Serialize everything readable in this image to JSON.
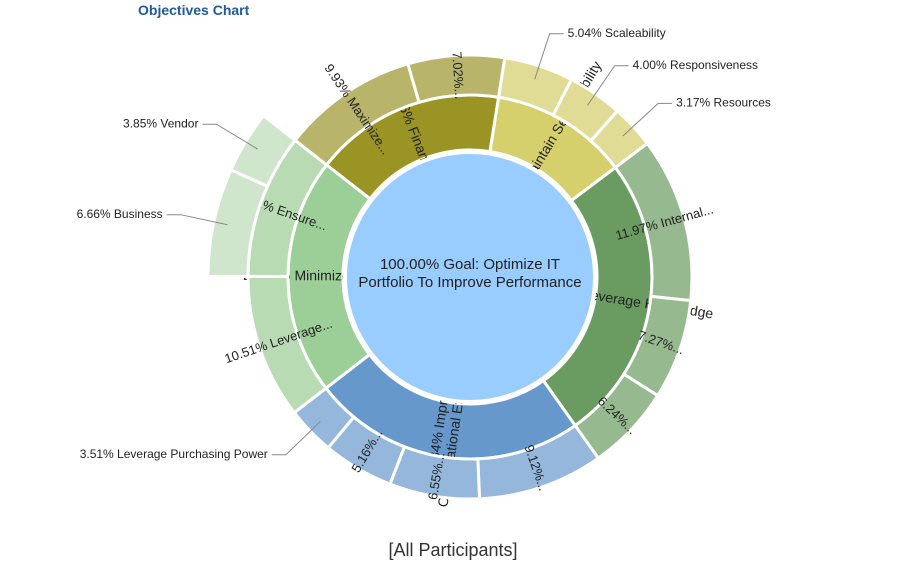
{
  "title": "Objectives Chart",
  "footer": "[All Participants]",
  "chart_data": {
    "type": "sunburst",
    "root": {
      "label": "100.00% Goal: Optimize IT Portfolio To Improve Performance",
      "value": 100.0,
      "color": "#99ccff"
    },
    "children": [
      {
        "label": "16.96% Financials",
        "value": 16.96,
        "color": "#9a9424",
        "children": [
          {
            "label": "9.93% Maximize...",
            "value": 9.93,
            "color": "#b8b46a"
          },
          {
            "label": "7.02%...",
            "value": 7.02,
            "color": "#b8b46a"
          }
        ]
      },
      {
        "label": "12.21% Maintain Serviceability",
        "value": 12.21,
        "color": "#d5d06c",
        "children": [
          {
            "label": "5.04% Scaleability",
            "value": 5.04,
            "color": "#e0dc95"
          },
          {
            "label": "4.00% Responsiveness",
            "value": 4.0,
            "color": "#e0dc95"
          },
          {
            "label": "3.17% Resources",
            "value": 3.17,
            "color": "#e0dc95"
          }
        ]
      },
      {
        "label": "25.47% Leverage Knowledge",
        "value": 25.47,
        "color": "#6a9c62",
        "children": [
          {
            "label": "11.97% Internal...",
            "value": 11.97,
            "color": "#96b98f"
          },
          {
            "label": "7.27%...",
            "value": 7.27,
            "color": "#96b98f"
          },
          {
            "label": "6.24%...",
            "value": 6.24,
            "color": "#96b98f"
          }
        ]
      },
      {
        "label": "24.34% Improve Organizational Efficiency",
        "value": 24.34,
        "color": "#6798cc",
        "children": [
          {
            "label": "9.12%...",
            "value": 9.12,
            "color": "#95b7dc"
          },
          {
            "label": "6.55%...",
            "value": 6.55,
            "color": "#95b7dc"
          },
          {
            "label": "5.16%...",
            "value": 5.16,
            "color": "#95b7dc"
          },
          {
            "label": "3.51% Leverage Purchasing Power",
            "value": 3.51,
            "color": "#95b7dc"
          }
        ]
      },
      {
        "label": "21.02% Minimize Risks",
        "value": 21.02,
        "color": "#9cce98",
        "children": [
          {
            "label": "10.51% Leverage...",
            "value": 10.51,
            "color": "#b8dbb3"
          },
          {
            "label": "10.51% Ensure...",
            "value": 10.51,
            "color": "#b8dbb3",
            "children": [
              {
                "label": "6.66% Business",
                "value": 6.66,
                "color": "#cfe6cc"
              },
              {
                "label": "3.85% Vendor",
                "value": 3.85,
                "color": "#cfe6cc"
              }
            ]
          }
        ]
      }
    ]
  }
}
